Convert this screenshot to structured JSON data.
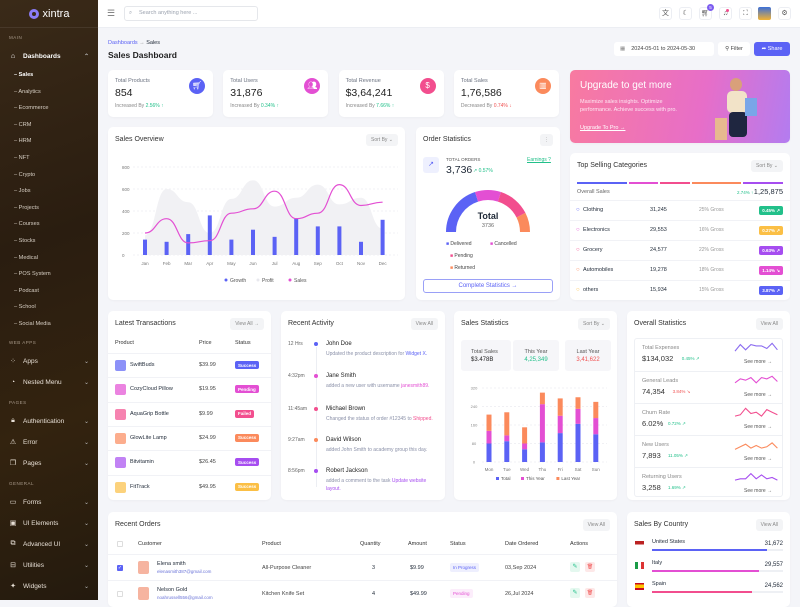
{
  "colors": {
    "primary": "#5b62f5",
    "pink": "#e34fd3",
    "rose": "#f24e8e",
    "orange": "#fb8a5c",
    "purple": "#a64df0",
    "yellow": "#fbbf45",
    "green": "#22c08a",
    "red": "#f05252"
  },
  "brand": "xintra",
  "sidebar": {
    "sections": [
      {
        "title": "MAIN",
        "items": [
          {
            "label": "Dashboards",
            "icon": "home-icon",
            "expanded": true,
            "children": [
              "Sales",
              "Analytics",
              "Ecommerce",
              "CRM",
              "HRM",
              "NFT",
              "Crypto",
              "Jobs",
              "Projects",
              "Courses",
              "Stocks",
              "Medical",
              "POS System",
              "Podcast",
              "School",
              "Social Media"
            ]
          }
        ]
      },
      {
        "title": "WEB APPS",
        "items": [
          {
            "label": "Apps",
            "icon": "apps-icon"
          },
          {
            "label": "Nested Menu",
            "icon": "layers-icon"
          }
        ]
      },
      {
        "title": "PAGES",
        "items": [
          {
            "label": "Authentication",
            "icon": "lock-icon"
          },
          {
            "label": "Error",
            "icon": "warning-icon"
          },
          {
            "label": "Pages",
            "icon": "pages-icon"
          }
        ]
      },
      {
        "title": "GENERAL",
        "items": [
          {
            "label": "Forms",
            "icon": "clipboard-icon"
          },
          {
            "label": "UI Elements",
            "icon": "box-icon"
          },
          {
            "label": "Advanced UI",
            "icon": "stack-icon"
          },
          {
            "label": "Utilities",
            "icon": "tools-icon"
          },
          {
            "label": "Widgets",
            "icon": "gift-icon"
          }
        ]
      }
    ],
    "active": "Sales"
  },
  "header": {
    "search_placeholder": "Search anything here ...",
    "cart_count": "5",
    "icons": [
      "language-icon",
      "moon-icon",
      "cart-icon",
      "bell-icon",
      "fullscreen-icon",
      "avatar",
      "gear-icon"
    ]
  },
  "page": {
    "breadcrumb": [
      "Dashboards",
      "Sales"
    ],
    "title": "Sales Dashboard",
    "date_range": "2024-05-01 to 2024-05-30",
    "filter": "Filter",
    "share": "Share"
  },
  "stats": [
    {
      "label": "Total Products",
      "value": "854",
      "trend_text": "Increased By",
      "trend": "2.56%",
      "dir": "up",
      "icon": "cart-icon",
      "color": "#5b62f5"
    },
    {
      "label": "Total Users",
      "value": "31,876",
      "trend_text": "Increased By",
      "trend": "0.34%",
      "dir": "up",
      "icon": "users-icon",
      "color": "#e34fd3"
    },
    {
      "label": "Total Revenue",
      "value": "$3,64,241",
      "trend_text": "Increased By",
      "trend": "7.66%",
      "dir": "up",
      "icon": "dollar-icon",
      "color": "#f24e8e"
    },
    {
      "label": "Total Sales",
      "value": "1,76,586",
      "trend_text": "Decreased By",
      "trend": "0.74%",
      "dir": "down",
      "icon": "chart-icon",
      "color": "#fb8a5c"
    }
  ],
  "banner": {
    "title": "Upgrade to get more",
    "text": "Maximize sales insights. Optimize performance. Achieve success with pro.",
    "link": "Upgrade To Pro →"
  },
  "sales_overview": {
    "title": "Sales Overview",
    "sort": "Sort By ⌄",
    "chart_data": {
      "type": "bar+line+area",
      "categories": [
        "Jan",
        "Feb",
        "Mar",
        "Apr",
        "May",
        "Jun",
        "Jul",
        "Aug",
        "Sep",
        "Oct",
        "Nov",
        "Dec"
      ],
      "ylim": [
        0,
        800
      ],
      "yticks": [
        0,
        200,
        400,
        600,
        800
      ],
      "series": [
        {
          "name": "Growth",
          "type": "bar",
          "values": [
            140,
            120,
            190,
            360,
            140,
            230,
            165,
            335,
            260,
            260,
            120,
            320
          ]
        },
        {
          "name": "Profit",
          "type": "area",
          "values": [
            180,
            600,
            480,
            200,
            510,
            680,
            440,
            520,
            640,
            460,
            520,
            240
          ]
        },
        {
          "name": "Sales",
          "type": "line",
          "values": [
            200,
            330,
            110,
            130,
            380,
            420,
            580,
            330,
            380,
            640,
            450,
            480
          ]
        }
      ]
    }
  },
  "order_stats": {
    "title": "Order Statistics",
    "label": "TOTAL ORDERS",
    "value": "3,736",
    "change": "0.57%",
    "earnings": "Earnings ?",
    "total_label": "Total",
    "total": "3736",
    "legend": [
      {
        "name": "Delivered",
        "color": "#5b62f5",
        "share": 40
      },
      {
        "name": "Cancelled",
        "color": "#e34fd3",
        "share": 20
      },
      {
        "name": "Pending",
        "color": "#f24e8e",
        "share": 25
      },
      {
        "name": "Returned",
        "color": "#fb8a5c",
        "share": 15
      }
    ],
    "button": "Complete Statistics →"
  },
  "top_selling": {
    "title": "Top Selling Categories",
    "sort": "Sort By ⌄",
    "overall_label": "Overall Sales",
    "overall_change": "2.74% ↑",
    "overall": "1,25,875",
    "rows": [
      {
        "name": "Clothing",
        "value": "31,245",
        "gross": "25% Gross",
        "badge": "0.45% ↗",
        "color": "#22c08a",
        "dot": "#5b62f5"
      },
      {
        "name": "Electronics",
        "value": "29,553",
        "gross": "16% Gross",
        "badge": "0.27% ↗",
        "color": "#fbbf45",
        "dot": "#e34fd3"
      },
      {
        "name": "Grocery",
        "value": "24,577",
        "gross": "22% Gross",
        "badge": "0.63% ↗",
        "color": "#a64df0",
        "dot": "#f24e8e"
      },
      {
        "name": "Automobiles",
        "value": "19,278",
        "gross": "18% Gross",
        "badge": "1.14% ↘",
        "color": "#e34fd3",
        "dot": "#fb8a5c"
      },
      {
        "name": "others",
        "value": "15,934",
        "gross": "15% Gross",
        "badge": "3.87% ↗",
        "color": "#5b62f5",
        "dot": "#fbbf45"
      }
    ]
  },
  "transactions": {
    "title": "Latest Transactions",
    "view_all": "View All →",
    "headers": [
      "Product",
      "Price",
      "Status"
    ],
    "rows": [
      {
        "product": "SwiftBuds",
        "price": "$39.99",
        "status": "Success",
        "color": "#5b62f5"
      },
      {
        "product": "CozyCloud Pillow",
        "price": "$19.95",
        "status": "Pending",
        "color": "#e34fd3"
      },
      {
        "product": "AquaGrip Bottle",
        "price": "$9.99",
        "status": "Failed",
        "color": "#f24e8e"
      },
      {
        "product": "GlowLite Lamp",
        "price": "$24.99",
        "status": "Success",
        "color": "#fb8a5c"
      },
      {
        "product": "Bitvitamin",
        "price": "$26.45",
        "status": "Success",
        "color": "#a64df0"
      },
      {
        "product": "FitTrack",
        "price": "$49.95",
        "status": "Success",
        "color": "#fbbf45"
      }
    ]
  },
  "activity": {
    "title": "Recent Activity",
    "view_all": "View All",
    "items": [
      {
        "time": "12 Hrs",
        "name": "John Doe",
        "text": "Updated the product description for ",
        "hl": "Widget X.",
        "hl_color": "#5b62f5",
        "dot": "#5b62f5"
      },
      {
        "time": "4:32pm",
        "name": "Jane Smith",
        "text": "added a new user with username ",
        "hl": "janesmith89.",
        "hl_color": "#e34fd3",
        "dot": "#e34fd3"
      },
      {
        "time": "11:45am",
        "name": "Michael Brown",
        "text": "Changed the status of order #12345 to ",
        "hl": "Shipped.",
        "hl_color": "#f24e8e",
        "dot": "#f24e8e"
      },
      {
        "time": "9:27am",
        "name": "David Wilson",
        "text": "added John Smith to academy group this day.",
        "hl": "",
        "hl_color": "#fb8a5c",
        "dot": "#fb8a5c"
      },
      {
        "time": "8:56pm",
        "name": "Robert Jackson",
        "text": "added a comment to the task ",
        "hl": "Update website layout.",
        "hl_color": "#a64df0",
        "dot": "#a64df0"
      }
    ]
  },
  "sales_stats": {
    "title": "Sales Statistics",
    "sort": "Sort By ⌄",
    "boxes": [
      {
        "label": "Total Sales",
        "value": "$3.478B",
        "color": "#222"
      },
      {
        "label": "This Year",
        "value": "4,25,349",
        "color": "#22c08a"
      },
      {
        "label": "Last Year",
        "value": "3,41,622",
        "color": "#f05252"
      }
    ],
    "chart_data": {
      "type": "bar",
      "stacked": true,
      "categories": [
        "Mon",
        "Tue",
        "Wed",
        "Thu",
        "Fri",
        "Sat",
        "Sun"
      ],
      "ylim": [
        0,
        320
      ],
      "yticks": [
        0,
        80,
        160,
        240,
        320
      ],
      "series": [
        {
          "name": "Total",
          "color": "#5b62f5",
          "values": [
            80,
            90,
            55,
            85,
            125,
            165,
            120
          ]
        },
        {
          "name": "This Year",
          "color": "#e34fd3",
          "values": [
            55,
            25,
            25,
            165,
            75,
            65,
            70
          ]
        },
        {
          "name": "Last Year",
          "color": "#fb8a5c",
          "values": [
            70,
            100,
            70,
            50,
            75,
            50,
            70
          ]
        }
      ]
    }
  },
  "overall": {
    "title": "Overall Statistics",
    "view_all": "View All",
    "see_more": "See more →",
    "items": [
      {
        "label": "Total Expenses",
        "value": "$134,032",
        "change": "0.45% ↗",
        "up": true,
        "color": "#8b6cf0",
        "spark": [
          3,
          8,
          4,
          8,
          7,
          7,
          5,
          9,
          4
        ]
      },
      {
        "label": "General Leads",
        "value": "74,354",
        "change": "3.84% ↘",
        "up": false,
        "color": "#e34fd3",
        "spark": [
          4,
          7,
          6,
          8,
          4,
          8,
          7,
          9,
          5
        ]
      },
      {
        "label": "Churn Rate",
        "value": "6.02%",
        "change": "0.72% ↗",
        "up": true,
        "color": "#f24e8e",
        "spark": [
          3,
          4,
          9,
          5,
          6,
          3,
          8,
          6,
          4
        ]
      },
      {
        "label": "New Users",
        "value": "7,893",
        "change": "11.05% ↗",
        "up": true,
        "color": "#fb8a5c",
        "spark": [
          2,
          4,
          6,
          3,
          5,
          3,
          4,
          7,
          3
        ]
      },
      {
        "label": "Returning Users",
        "value": "3,258",
        "change": "1.69% ↗",
        "up": true,
        "color": "#a64df0",
        "spark": [
          3,
          4,
          4,
          8,
          4,
          7,
          4,
          5,
          3
        ]
      }
    ]
  },
  "orders": {
    "title": "Recent Orders",
    "view_all": "View All",
    "headers": [
      "Customer",
      "Product",
      "Quantity",
      "Amount",
      "Status",
      "Date Ordered",
      "Actions"
    ],
    "rows": [
      {
        "checked": true,
        "name": "Elena smith",
        "email": "elenasmith387@gmail.com",
        "product": "All-Purpose Cleaner",
        "qty": "3",
        "amount": "$9.99",
        "status": "In Progress",
        "status_color": "#5b62f5",
        "date": "03,Sep 2024"
      },
      {
        "checked": false,
        "name": "Nelson Gold",
        "email": "noahrussell556@gmail.com",
        "product": "Kitchen Knife Set",
        "qty": "4",
        "amount": "$49.99",
        "status": "Pending",
        "status_color": "#e34fd3",
        "date": "26,Jul 2024"
      }
    ]
  },
  "countries": {
    "title": "Sales By Country",
    "view_all": "View All",
    "items": [
      {
        "name": "United States",
        "value": "31,672",
        "pct": 88,
        "color": "#5b62f5"
      },
      {
        "name": "Italy",
        "value": "29,557",
        "pct": 82,
        "color": "#e34fd3"
      },
      {
        "name": "Spain",
        "value": "24,562",
        "pct": 76,
        "color": "#f24e8e"
      }
    ]
  }
}
